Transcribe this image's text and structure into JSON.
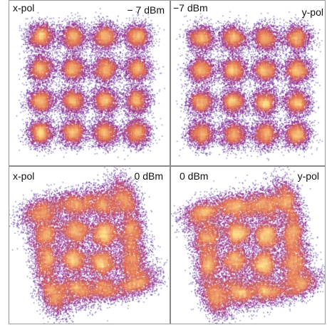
{
  "colors": {
    "background": "#ffffff",
    "sparse": "#1a0d8c",
    "mid": "#8a1e8e",
    "dense": "#e2714f",
    "core": "#ffe08a",
    "frame": "#9a9a9a"
  },
  "chart_data": [
    {
      "type": "scatter",
      "panel": "top-left",
      "modulation": "16-QAM",
      "polarization_label": "x-pol",
      "power_label": "− 7 dBm",
      "constellation": {
        "symbols_per_axis": 4,
        "grid_levels": [
          -3,
          -1,
          1,
          3
        ],
        "noise_sigma": 0.45,
        "nonlinear_distortion": 0.0,
        "outer_ring_bias": 0.0
      },
      "color_scale": "density (blue → purple → orange → yellow)",
      "axes": "none"
    },
    {
      "type": "scatter",
      "panel": "top-right",
      "modulation": "16-QAM",
      "polarization_label": "y-pol",
      "power_label": "−7 dBm",
      "constellation": {
        "symbols_per_axis": 4,
        "grid_levels": [
          -3,
          -1,
          1,
          3
        ],
        "noise_sigma": 0.45,
        "nonlinear_distortion": 0.0,
        "outer_ring_bias": 0.0
      },
      "color_scale": "density (blue → purple → orange → yellow)",
      "axes": "none"
    },
    {
      "type": "scatter",
      "panel": "bottom-left",
      "modulation": "16-QAM",
      "polarization_label": "x-pol",
      "power_label": "0 dBm",
      "constellation": {
        "symbols_per_axis": 4,
        "grid_levels": [
          -3,
          -1,
          1,
          3
        ],
        "noise_sigma": 0.55,
        "nonlinear_distortion": 0.6,
        "outer_ring_bias": 0.45
      },
      "color_scale": "density (blue → purple → orange → yellow)",
      "axes": "none"
    },
    {
      "type": "scatter",
      "panel": "bottom-right",
      "modulation": "16-QAM",
      "polarization_label": "y-pol",
      "power_label": "0 dBm",
      "constellation": {
        "symbols_per_axis": 4,
        "grid_levels": [
          -3,
          -1,
          1,
          3
        ],
        "noise_sigma": 0.55,
        "nonlinear_distortion": 0.6,
        "outer_ring_bias": 0.45
      },
      "color_scale": "density (blue → purple → orange → yellow)",
      "axes": "none"
    }
  ],
  "labels": {
    "top_left_pol": "x-pol",
    "top_left_power": "− 7 dBm",
    "top_right_power": "−7 dBm",
    "top_right_pol": "y-pol",
    "bottom_left_pol": "x-pol",
    "bottom_left_power": "0 dBm",
    "bottom_right_power": "0 dBm",
    "bottom_right_pol": "y-pol"
  }
}
